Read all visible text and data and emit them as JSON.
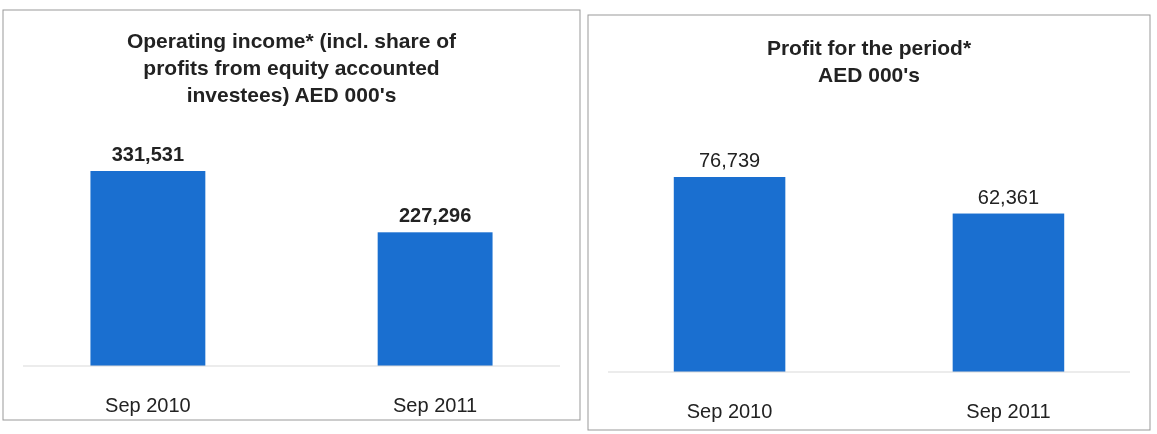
{
  "chart_data": [
    {
      "type": "bar",
      "title": "Operating income* (incl. share of profits from equity accounted investees) AED 000's",
      "categories": [
        "Sep 2010",
        "Sep 2011"
      ],
      "values": [
        331531,
        227296
      ],
      "value_labels": [
        "331,531",
        "227,296"
      ],
      "color": "#1a6fd0"
    },
    {
      "type": "bar",
      "title": "Profit for the period* AED 000's",
      "categories": [
        "Sep 2010",
        "Sep 2011"
      ],
      "values": [
        76739,
        62361
      ],
      "value_labels": [
        "76,739",
        "62,361"
      ],
      "color": "#1a6fd0"
    }
  ]
}
